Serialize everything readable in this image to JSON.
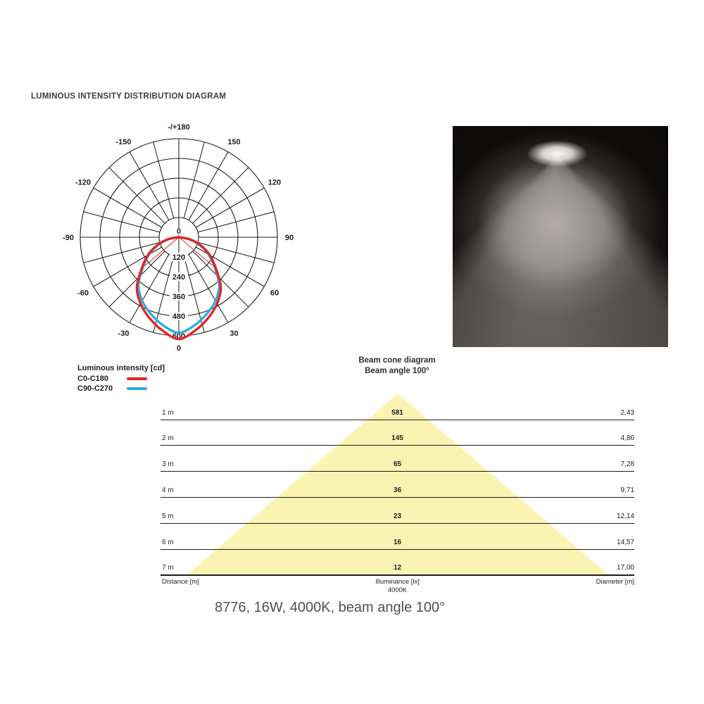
{
  "title": "LUMINOUS INTENSITY DISTRIBUTION DIAGRAM",
  "legend": {
    "title": "Luminous intensity [cd]",
    "series": [
      {
        "label": "C0-C180",
        "color": "#e5231f"
      },
      {
        "label": "C90-C270",
        "color": "#2bace2"
      }
    ]
  },
  "beam_cone": {
    "heading_line1": "Beam cone diagram",
    "heading_line2": "Beam angle 100°",
    "footer": {
      "distance": "Distance [m]",
      "illuminance": "Illuminance [lx]",
      "illuminance_sub": "4000K",
      "diameter": "Diameter [m]"
    }
  },
  "caption": "8776, 16W, 4000K, beam angle 100°",
  "colors": {
    "c0_c180": "#e5231f",
    "c90_c270": "#2bace2",
    "cone_fill": "#faf3b2",
    "grid": "#1d1d1d"
  },
  "chart_data": [
    {
      "type": "line",
      "subtype": "polar-luminous-intensity-distribution",
      "units": "cd",
      "title": "Luminous intensity [cd]",
      "angle_tick_labels": [
        {
          "text": "-/+180",
          "deg_from_nadir": 180,
          "side": 1
        },
        {
          "text": "-150",
          "deg_from_nadir": 150,
          "side": -1
        },
        {
          "text": "150",
          "deg_from_nadir": 150,
          "side": 1
        },
        {
          "text": "-120",
          "deg_from_nadir": 120,
          "side": -1
        },
        {
          "text": "120",
          "deg_from_nadir": 120,
          "side": 1
        },
        {
          "text": "-90",
          "deg_from_nadir": 90,
          "side": -1
        },
        {
          "text": "90",
          "deg_from_nadir": 90,
          "side": 1
        },
        {
          "text": "-60",
          "deg_from_nadir": 60,
          "side": -1
        },
        {
          "text": "60",
          "deg_from_nadir": 60,
          "side": 1
        },
        {
          "text": "-30",
          "deg_from_nadir": 30,
          "side": -1
        },
        {
          "text": "30",
          "deg_from_nadir": 30,
          "side": 1
        },
        {
          "text": "0",
          "deg_from_nadir": 0,
          "side": 1
        }
      ],
      "radial_ticks": [
        0,
        120,
        240,
        360,
        480,
        600
      ],
      "rmax": 600,
      "spoke_step_deg": 15,
      "beam_angle_deg": 100,
      "series": [
        {
          "name": "C0-C180",
          "color": "#e5231f",
          "points_deg_cd": [
            [
              0,
              620
            ],
            [
              10,
              576
            ],
            [
              20,
              523
            ],
            [
              30,
              466
            ],
            [
              40,
              398
            ],
            [
              50,
              295
            ],
            [
              60,
              218
            ],
            [
              70,
              140
            ],
            [
              80,
              65
            ],
            [
              90,
              0
            ]
          ]
        },
        {
          "name": "C90-C270",
          "color": "#2bace2",
          "points_deg_cd": [
            [
              0,
              581
            ],
            [
              10,
              545
            ],
            [
              20,
              497
            ],
            [
              30,
              447
            ],
            [
              40,
              382
            ],
            [
              50,
              285
            ],
            [
              60,
              208
            ],
            [
              70,
              132
            ],
            [
              80,
              58
            ],
            [
              90,
              0
            ]
          ]
        }
      ]
    },
    {
      "type": "table",
      "title": "Beam cone diagram",
      "beam_angle": "100°",
      "columns": [
        "Distance [m]",
        "Illuminance [lx] 4000K",
        "Diameter [m]"
      ],
      "rows": [
        [
          "1 m",
          "581",
          "2,43"
        ],
        [
          "2 m",
          "145",
          "4,86"
        ],
        [
          "3 m",
          "65",
          "7,28"
        ],
        [
          "4 m",
          "36",
          "9,71"
        ],
        [
          "5 m",
          "23",
          "12,14"
        ],
        [
          "6 m",
          "16",
          "14,57"
        ],
        [
          "7 m",
          "12",
          "17,00"
        ]
      ]
    }
  ]
}
